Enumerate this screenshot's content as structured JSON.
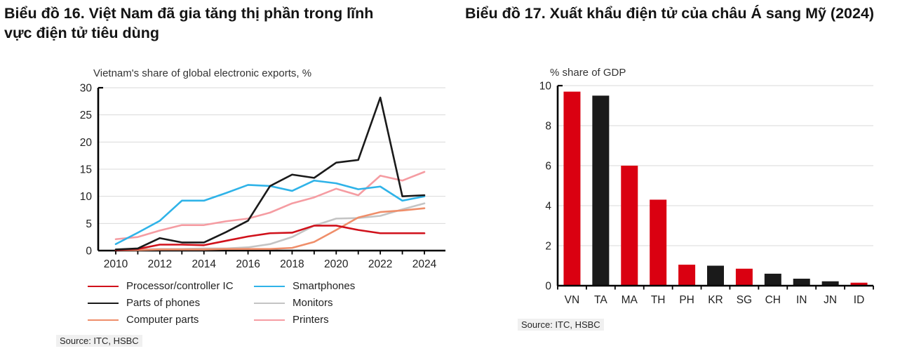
{
  "left_panel": {
    "title": "Biểu đồ 16. Việt Nam đã gia tăng thị phần trong lĩnh vực điện tử tiêu dùng",
    "source": "Source: ITC, HSBC"
  },
  "right_panel": {
    "title": "Biểu đồ 17. Xuất khẩu điện tử của châu Á sang Mỹ (2024)",
    "source": "Source: ITC, HSBC"
  },
  "chart_data": [
    {
      "type": "line",
      "title": "Vietnam's share of global electronic exports, %",
      "x": [
        2010,
        2011,
        2012,
        2013,
        2014,
        2015,
        2016,
        2017,
        2018,
        2019,
        2020,
        2021,
        2022,
        2023,
        2024
      ],
      "x_tick_labels": [
        "2010",
        "2012",
        "2014",
        "2016",
        "2018",
        "2020",
        "2022",
        "2024"
      ],
      "ylim": [
        0,
        30
      ],
      "yticks": [
        0,
        5,
        10,
        15,
        20,
        25,
        30
      ],
      "grid": true,
      "legend_position": "bottom",
      "series": [
        {
          "name": "Processor/controller IC",
          "color": "#d0111b",
          "z": 5,
          "values": [
            0.1,
            0.3,
            1.1,
            1.1,
            1.0,
            1.8,
            2.6,
            3.2,
            3.3,
            4.6,
            4.6,
            3.8,
            3.2,
            3.2,
            3.2
          ]
        },
        {
          "name": "Smartphones",
          "color": "#2fb3e8",
          "z": 4,
          "values": [
            1.2,
            3.3,
            5.5,
            9.2,
            9.2,
            10.6,
            12.1,
            11.9,
            11.0,
            12.9,
            12.4,
            11.3,
            11.8,
            9.2,
            10.0
          ]
        },
        {
          "name": "Parts of phones",
          "color": "#1a1a1a",
          "z": 6,
          "values": [
            0.2,
            0.4,
            2.3,
            1.5,
            1.5,
            3.4,
            5.5,
            11.9,
            14.0,
            13.4,
            16.2,
            16.7,
            28.2,
            10.0,
            10.2
          ]
        },
        {
          "name": "Monitors",
          "color": "#c4c4c4",
          "z": 1,
          "values": [
            0.2,
            0.2,
            0.3,
            0.3,
            0.4,
            0.4,
            0.6,
            1.2,
            2.5,
            4.6,
            5.9,
            6.0,
            6.4,
            7.6,
            8.7
          ]
        },
        {
          "name": "Computer parts",
          "color": "#ef8e6a",
          "z": 2,
          "values": [
            0.1,
            0.1,
            0.2,
            0.2,
            0.2,
            0.3,
            0.3,
            0.3,
            0.5,
            1.6,
            3.8,
            6.1,
            7.1,
            7.4,
            7.8
          ]
        },
        {
          "name": "Printers",
          "color": "#f59ca2",
          "z": 3,
          "values": [
            2.1,
            2.5,
            3.7,
            4.7,
            4.7,
            5.4,
            5.9,
            7.0,
            8.7,
            9.8,
            11.4,
            10.2,
            13.8,
            12.9,
            14.5
          ]
        }
      ]
    },
    {
      "type": "bar",
      "title": "% share of GDP",
      "categories": [
        "VN",
        "TA",
        "MA",
        "TH",
        "PH",
        "KR",
        "SG",
        "CH",
        "IN",
        "JN",
        "ID"
      ],
      "values": [
        9.7,
        9.5,
        6.0,
        4.3,
        1.05,
        1.0,
        0.85,
        0.6,
        0.35,
        0.22,
        0.15
      ],
      "bar_colors": [
        "#da0011",
        "#1a1a1a",
        "#da0011",
        "#da0011",
        "#da0011",
        "#1a1a1a",
        "#da0011",
        "#1a1a1a",
        "#1a1a1a",
        "#1a1a1a",
        "#da0011"
      ],
      "ylim": [
        0,
        10
      ],
      "yticks": [
        0,
        2,
        4,
        6,
        8,
        10
      ],
      "grid": true
    }
  ],
  "colors": {
    "accent_red": "#da0011",
    "gridline": "#d9d9d9",
    "axis": "#000000"
  }
}
